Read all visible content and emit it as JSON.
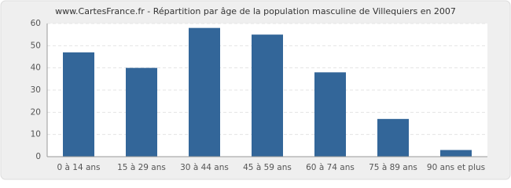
{
  "chart_data": {
    "type": "bar",
    "title": "www.CartesFrance.fr - Répartition par âge de la population masculine de Villequiers en 2007",
    "categories": [
      "0 à 14 ans",
      "15 à 29 ans",
      "30 à 44 ans",
      "45 à 59 ans",
      "60 à 74 ans",
      "75 à 89 ans",
      "90 ans et plus"
    ],
    "values": [
      47,
      40,
      58,
      55,
      38,
      17,
      3
    ],
    "color": "#336699",
    "ylim": [
      0,
      60
    ],
    "yticks": [
      0,
      10,
      20,
      30,
      40,
      50,
      60
    ],
    "grid": true
  }
}
